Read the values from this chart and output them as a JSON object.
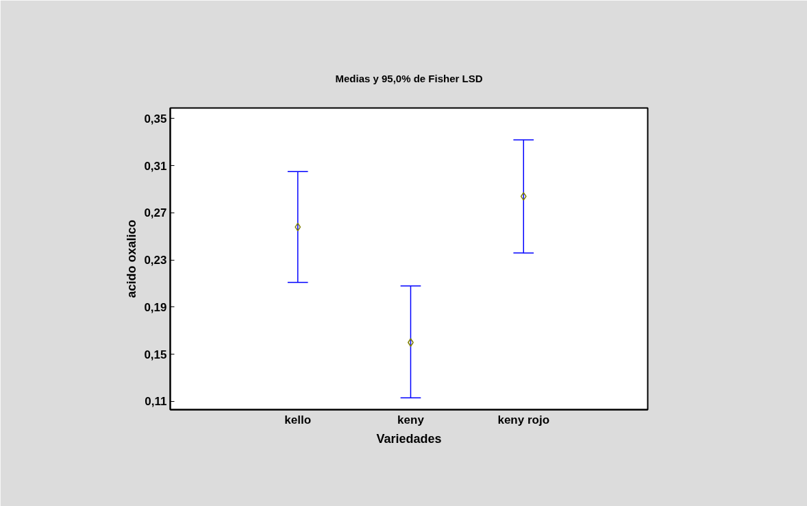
{
  "chart_data": {
    "type": "scatter",
    "title": "Medias y 95,0% de Fisher LSD",
    "xlabel": "Variedades",
    "ylabel": "acido oxalico",
    "categories": [
      "kello",
      "keny",
      "keny rojo"
    ],
    "series": [
      {
        "color": "#808000",
        "values": [
          0.258,
          0.16,
          0.284
        ],
        "errors": [
          [
            0.211,
            0.305
          ],
          [
            0.113,
            0.208
          ],
          [
            0.236,
            0.332
          ]
        ]
      }
    ],
    "ylim": [
      0.103,
      0.359
    ],
    "yticks": [
      {
        "value": 0.11,
        "label": "0,11"
      },
      {
        "value": 0.15,
        "label": "0,15"
      },
      {
        "value": 0.19,
        "label": "0,19"
      },
      {
        "value": 0.23,
        "label": "0,23"
      },
      {
        "value": 0.27,
        "label": "0,27"
      },
      {
        "value": 0.31,
        "label": "0,31"
      },
      {
        "value": 0.35,
        "label": "0,35"
      }
    ],
    "marker": "diamond",
    "grid": false
  }
}
